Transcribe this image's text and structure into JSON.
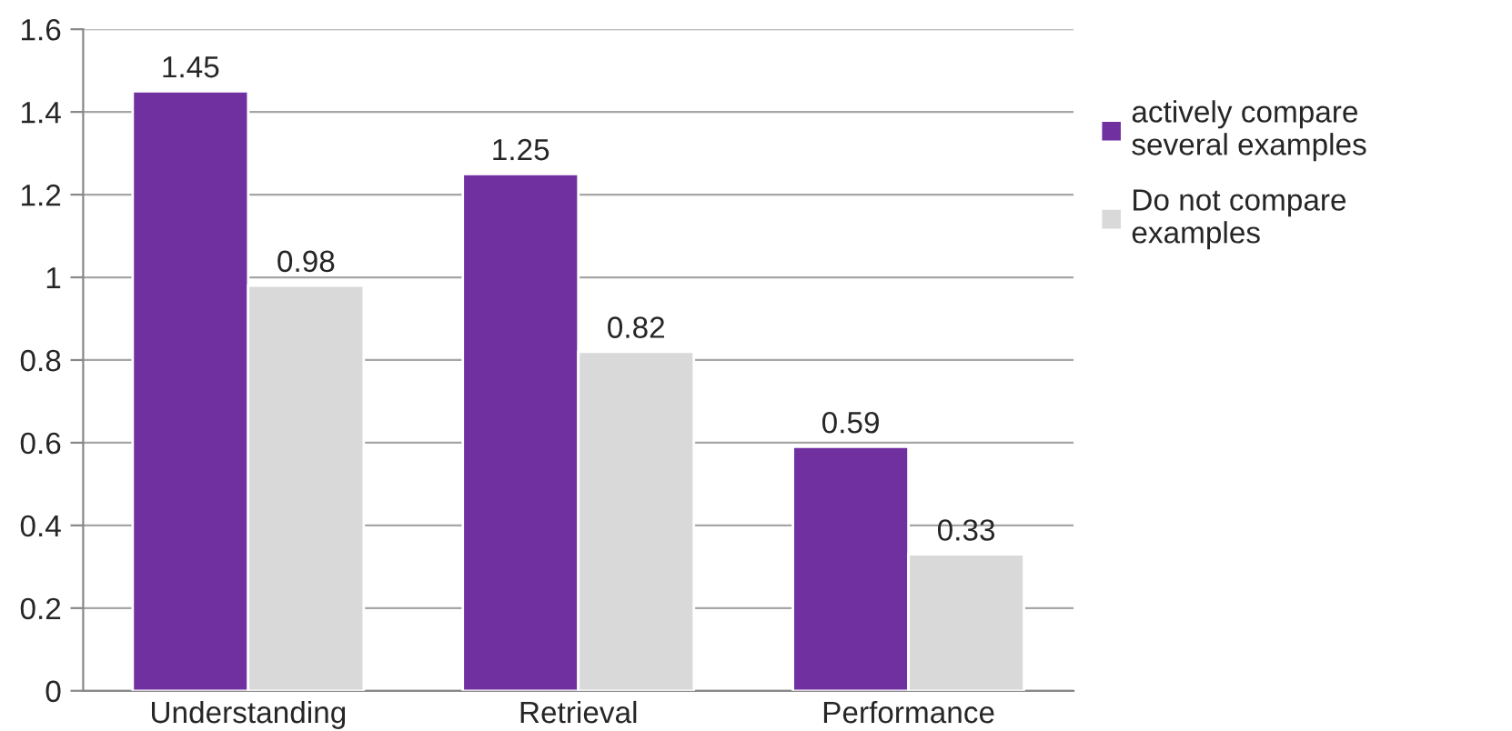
{
  "chart_data": {
    "type": "bar",
    "categories": [
      "Understanding",
      "Retrieval",
      "Performance"
    ],
    "series": [
      {
        "name": "actively compare\nseveral examples",
        "color": "#7030a0",
        "values": [
          1.45,
          1.25,
          0.59
        ]
      },
      {
        "name": "Do not compare\nexamples",
        "color": "#d9d9d9",
        "values": [
          0.98,
          0.82,
          0.33
        ]
      }
    ],
    "ylim": [
      0,
      1.6
    ],
    "yticks": [
      0,
      {
        "value": 0.2,
        "label": "0.2"
      },
      {
        "value": 0.4,
        "label": "0.4"
      },
      {
        "value": 0.6,
        "label": "0.6"
      },
      {
        "value": 0.8,
        "label": "0.8"
      },
      1,
      {
        "value": 1.2,
        "label": "1.2"
      },
      {
        "value": 1.4,
        "label": "1.4"
      },
      {
        "value": 1.6,
        "label": "1.6"
      }
    ],
    "grid": "y",
    "legend": "right",
    "data_labels": true
  }
}
